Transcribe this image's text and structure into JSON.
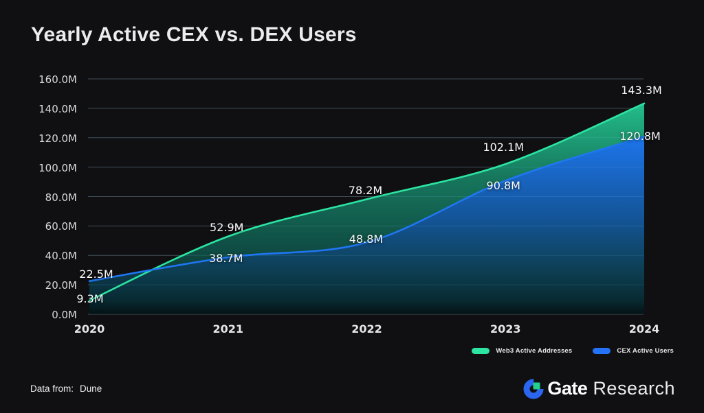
{
  "title": "Yearly Active CEX vs. DEX Users",
  "chart_data": {
    "type": "area",
    "x": [
      "2020",
      "2021",
      "2022",
      "2023",
      "2024"
    ],
    "series": [
      {
        "name": "Web3 Active Addresses",
        "color": "#2ce5a2",
        "values": [
          9.3,
          52.9,
          78.2,
          102.1,
          143.3
        ],
        "labels": [
          "9.3M",
          "52.9M",
          "78.2M",
          "102.1M",
          "143.3M"
        ]
      },
      {
        "name": "CEX Active Users",
        "color": "#1f76f2",
        "values": [
          22.5,
          38.7,
          48.8,
          90.8,
          120.8
        ],
        "labels": [
          "22.5M",
          "38.7M",
          "48.8M",
          "90.8M",
          "120.8M"
        ]
      }
    ],
    "ylabel_ticks": [
      "0.0M",
      "20.0M",
      "40.0M",
      "60.0M",
      "80.0M",
      "100.0M",
      "120.0M",
      "140.0M",
      "160.0M"
    ],
    "ylim": [
      0,
      160
    ],
    "grid": true,
    "legend_position": "bottom-right"
  },
  "legend": [
    {
      "label": "Web3 Active Addresses",
      "color": "#2ce5a2"
    },
    {
      "label": "CEX Active Users",
      "color": "#2472f5"
    }
  ],
  "footer": {
    "source_label": "Data from:",
    "source_value": "Dune",
    "brand_bold": "Gate",
    "brand_light": "Research",
    "brand_blue": "#2b66f0",
    "brand_green": "#20d08c"
  }
}
